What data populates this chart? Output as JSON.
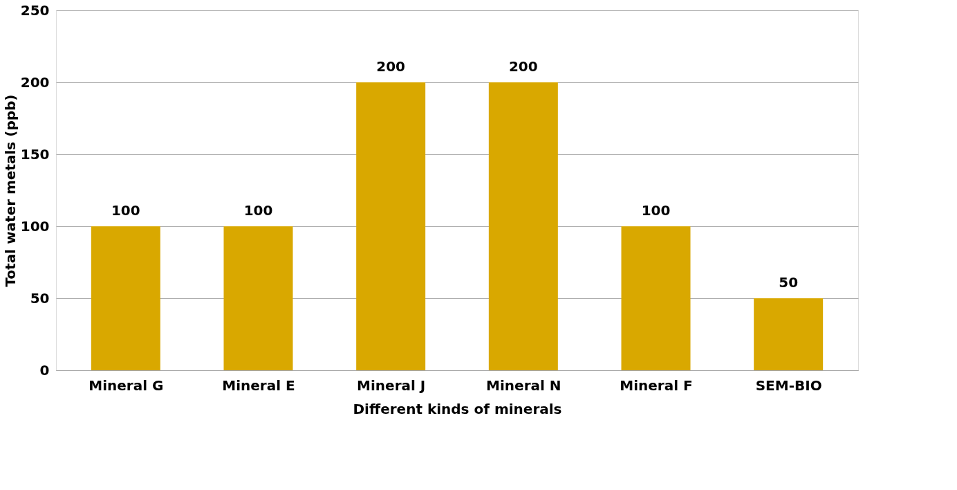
{
  "chart_data": {
    "type": "bar",
    "xlabel": "Different kinds of minerals",
    "ylabel": "Total water metals (ppb)",
    "categories": [
      "Mineral G",
      "Mineral E",
      "Mineral J",
      "Mineral N",
      "Mineral F",
      "SEM-BIO"
    ],
    "values": [
      100,
      100,
      200,
      200,
      100,
      50
    ],
    "color": "#d9a800",
    "ylim": [
      0,
      250
    ],
    "yticks": [
      0,
      50,
      100,
      150,
      200,
      250
    ],
    "grid": "y",
    "data_labels": true
  }
}
